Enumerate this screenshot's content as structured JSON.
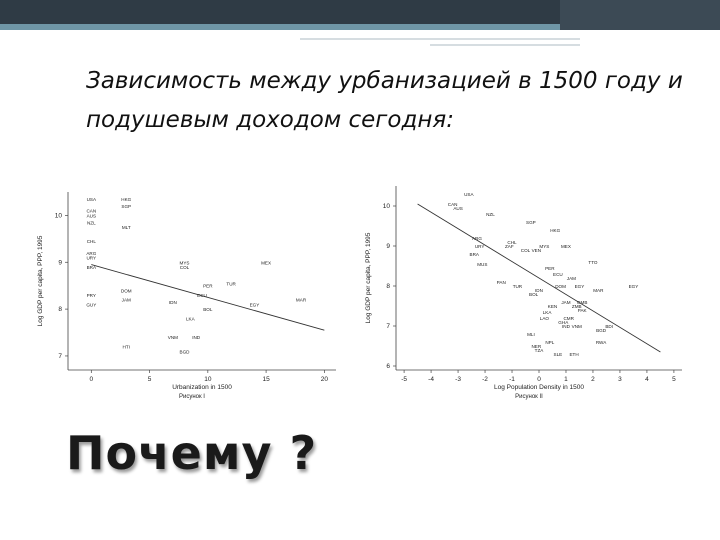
{
  "slide": {
    "title": "Зависимость между урбанизацией в 1500 году и подушевым доходом сегодня:",
    "question": "Почему ?"
  },
  "theme": {
    "topbar": "#2f3b45",
    "accent": "#6f96a6",
    "point": "#333333"
  },
  "chart_data": [
    {
      "type": "scatter",
      "title": "",
      "xlabel": "Urbanization in 1500",
      "ylabel": "Log GDP per capita, PPP, 1995",
      "caption": "Рисунок I",
      "xlim": [
        -2,
        21
      ],
      "ylim": [
        6.7,
        10.5
      ],
      "xticks": [
        0,
        5,
        10,
        15,
        20
      ],
      "yticks": [
        7,
        8,
        9,
        10
      ],
      "trend": {
        "x": [
          0,
          20
        ],
        "y": [
          8.95,
          7.55
        ]
      },
      "points": [
        {
          "label": "USA",
          "x": 0,
          "y": 10.35
        },
        {
          "label": "CAN",
          "x": 0,
          "y": 10.1
        },
        {
          "label": "AUS",
          "x": 0,
          "y": 10.0
        },
        {
          "label": "NZL",
          "x": 0,
          "y": 9.85
        },
        {
          "label": "CHL",
          "x": 0,
          "y": 9.45
        },
        {
          "label": "ARG",
          "x": 0,
          "y": 9.2
        },
        {
          "label": "URY",
          "x": 0,
          "y": 9.1
        },
        {
          "label": "BRA",
          "x": 0,
          "y": 8.9
        },
        {
          "label": "PRY",
          "x": 0,
          "y": 8.3
        },
        {
          "label": "GUY",
          "x": 0,
          "y": 8.1
        },
        {
          "label": "HKG",
          "x": 3,
          "y": 10.35
        },
        {
          "label": "SGP",
          "x": 3,
          "y": 10.2
        },
        {
          "label": "MLT",
          "x": 3,
          "y": 9.75
        },
        {
          "label": "DOM",
          "x": 3,
          "y": 8.4
        },
        {
          "label": "JAM",
          "x": 3,
          "y": 8.2
        },
        {
          "label": "HTI",
          "x": 3,
          "y": 7.2
        },
        {
          "label": "VNM",
          "x": 7,
          "y": 7.4
        },
        {
          "label": "MYS",
          "x": 8,
          "y": 9.0
        },
        {
          "label": "COL",
          "x": 8,
          "y": 8.9
        },
        {
          "label": "IDN",
          "x": 7,
          "y": 8.15
        },
        {
          "label": "LKA",
          "x": 8.5,
          "y": 7.8
        },
        {
          "label": "IND",
          "x": 9,
          "y": 7.4
        },
        {
          "label": "BGD",
          "x": 8,
          "y": 7.1
        },
        {
          "label": "PER",
          "x": 10,
          "y": 8.5
        },
        {
          "label": "ECU",
          "x": 9.5,
          "y": 8.3
        },
        {
          "label": "TUR",
          "x": 12,
          "y": 8.55
        },
        {
          "label": "BOL",
          "x": 10,
          "y": 8.0
        },
        {
          "label": "MEX",
          "x": 15,
          "y": 9.0
        },
        {
          "label": "EGY",
          "x": 14,
          "y": 8.1
        },
        {
          "label": "MAR",
          "x": 18,
          "y": 8.2
        }
      ]
    },
    {
      "type": "scatter",
      "title": "",
      "xlabel": "Log Population Density in 1500",
      "ylabel": "Log GDP per capita, PPP, 1995",
      "caption": "Рисунок II",
      "xlim": [
        -5.3,
        5.3
      ],
      "ylim": [
        5.9,
        10.5
      ],
      "xticks": [
        -5,
        -4,
        -3,
        -2,
        -1,
        0,
        1,
        2,
        3,
        4,
        5
      ],
      "yticks": [
        6,
        7,
        8,
        9,
        10
      ],
      "trend": {
        "x": [
          -4.5,
          4.5
        ],
        "y": [
          10.05,
          6.35
        ]
      },
      "points": [
        {
          "label": "USA",
          "x": -2.6,
          "y": 10.3
        },
        {
          "label": "CAN",
          "x": -3.2,
          "y": 10.05
        },
        {
          "label": "AUS",
          "x": -3.0,
          "y": 9.95
        },
        {
          "label": "NZL",
          "x": -1.8,
          "y": 9.8
        },
        {
          "label": "SGP",
          "x": -0.3,
          "y": 9.6
        },
        {
          "label": "HKG",
          "x": 0.6,
          "y": 9.4
        },
        {
          "label": "CHL",
          "x": -1.0,
          "y": 9.1
        },
        {
          "label": "ARG",
          "x": -2.3,
          "y": 9.2
        },
        {
          "label": "URY",
          "x": -2.2,
          "y": 9.0
        },
        {
          "label": "BRA",
          "x": -2.4,
          "y": 8.8
        },
        {
          "label": "ZAF",
          "x": -1.1,
          "y": 9.0
        },
        {
          "label": "MYS",
          "x": 0.2,
          "y": 9.0
        },
        {
          "label": "MEX",
          "x": 1.0,
          "y": 9.0
        },
        {
          "label": "COL",
          "x": -0.5,
          "y": 8.9
        },
        {
          "label": "VEN",
          "x": -0.1,
          "y": 8.9
        },
        {
          "label": "TTO",
          "x": 2.0,
          "y": 8.6
        },
        {
          "label": "MUS",
          "x": -2.1,
          "y": 8.55
        },
        {
          "label": "PER",
          "x": 0.4,
          "y": 8.45
        },
        {
          "label": "ECU",
          "x": 0.7,
          "y": 8.3
        },
        {
          "label": "TUR",
          "x": -0.8,
          "y": 8.0
        },
        {
          "label": "JAM",
          "x": 1.2,
          "y": 8.2
        },
        {
          "label": "PAN",
          "x": -1.4,
          "y": 8.1
        },
        {
          "label": "DOM",
          "x": 0.8,
          "y": 8.0
        },
        {
          "label": "IDN",
          "x": 0.0,
          "y": 7.9
        },
        {
          "label": "EGY",
          "x": 3.5,
          "y": 8.0
        },
        {
          "label": "MAR",
          "x": 2.2,
          "y": 7.9
        },
        {
          "label": "JAM",
          "x": 1.0,
          "y": 7.6
        },
        {
          "label": "LKA",
          "x": 0.3,
          "y": 7.35
        },
        {
          "label": "IND",
          "x": 1.0,
          "y": 7.0
        },
        {
          "label": "PAK",
          "x": 1.6,
          "y": 7.4
        },
        {
          "label": "CMR",
          "x": 1.1,
          "y": 7.2
        },
        {
          "label": "GHA",
          "x": 0.9,
          "y": 7.1
        },
        {
          "label": "BOL",
          "x": -0.2,
          "y": 7.8
        },
        {
          "label": "LAO",
          "x": 0.2,
          "y": 7.2
        },
        {
          "label": "VNM",
          "x": 1.4,
          "y": 7.0
        },
        {
          "label": "BGD",
          "x": 2.3,
          "y": 6.9
        },
        {
          "label": "ETH",
          "x": 1.3,
          "y": 6.3
        },
        {
          "label": "NPL",
          "x": 0.4,
          "y": 6.6
        },
        {
          "label": "RWA",
          "x": 2.3,
          "y": 6.6
        },
        {
          "label": "BDI",
          "x": 2.6,
          "y": 7.0
        },
        {
          "label": "MLI",
          "x": -0.3,
          "y": 6.8
        },
        {
          "label": "NER",
          "x": -0.1,
          "y": 6.5
        },
        {
          "label": "SLE",
          "x": 0.7,
          "y": 6.3
        },
        {
          "label": "TZA",
          "x": 0.0,
          "y": 6.4
        },
        {
          "label": "GMB",
          "x": 1.6,
          "y": 7.6
        },
        {
          "label": "ZMB",
          "x": 1.4,
          "y": 7.5
        },
        {
          "label": "KEN",
          "x": 0.5,
          "y": 7.5
        },
        {
          "label": "EGY",
          "x": 1.5,
          "y": 8.0
        }
      ]
    }
  ]
}
